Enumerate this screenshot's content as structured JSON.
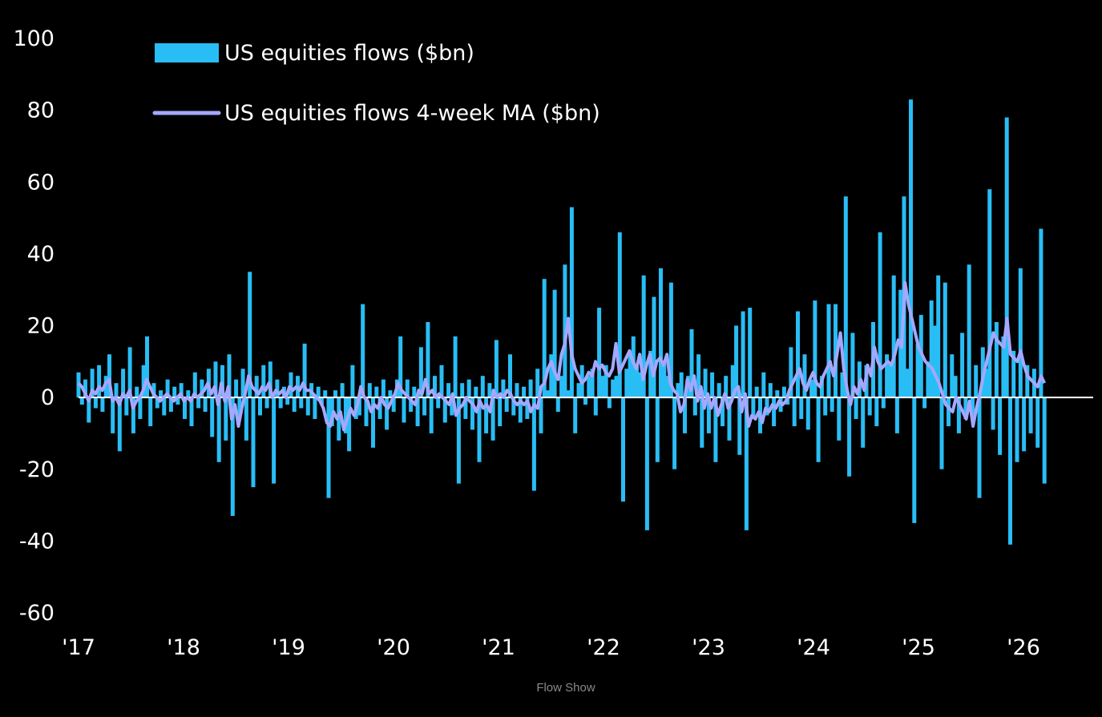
{
  "colors": {
    "background": "#000000",
    "bars": "#29BDF5",
    "ma_line": "#A4A8FF",
    "zero_line": "#FFFFFF",
    "text": "#FFFFFF",
    "caption": "#8A8A8A"
  },
  "caption": "Flow Show",
  "chart_data": {
    "type": "bar",
    "title": "",
    "xlabel": "",
    "ylabel": "",
    "ylim": [
      -60,
      100
    ],
    "yticks": [
      "100",
      "80",
      "60",
      "40",
      "20",
      "0",
      "-20",
      "-40",
      "-60"
    ],
    "xticks": [
      "'17",
      "'18",
      "'19",
      "'20",
      "'21",
      "'22",
      "'23",
      "'24",
      "'25",
      "'26"
    ],
    "x_range_years": [
      2017,
      2026.5
    ],
    "grid": false,
    "legend": "top-left",
    "series": [
      {
        "name": "US equities flows ($bn)",
        "kind": "bar",
        "x_start": 2017.0,
        "freq": "weekly",
        "values": [
          7,
          -2,
          5,
          -7,
          8,
          -3,
          9,
          -4,
          6,
          12,
          -10,
          4,
          -15,
          8,
          -5,
          14,
          -10,
          3,
          -6,
          9,
          17,
          -8,
          4,
          -3,
          2,
          -5,
          5,
          -4,
          3,
          -2,
          4,
          -6,
          2,
          -8,
          7,
          -3,
          5,
          -4,
          8,
          -11,
          10,
          -18,
          9,
          -12,
          12,
          -33,
          5,
          -6,
          8,
          -12,
          35,
          -25,
          6,
          -5,
          9,
          -3,
          10,
          -24,
          5,
          -3,
          3,
          -2,
          7,
          -4,
          6,
          -3,
          15,
          -5,
          4,
          -6,
          3,
          -2,
          2,
          -28,
          -8,
          2,
          -12,
          4,
          -10,
          -15,
          9,
          -6,
          -5,
          26,
          -8,
          4,
          -14,
          3,
          -6,
          5,
          -9,
          2,
          -4,
          5,
          17,
          -7,
          5,
          -4,
          3,
          -8,
          14,
          -5,
          21,
          -10,
          6,
          -3,
          9,
          -7,
          4,
          -5,
          17,
          -24,
          4,
          -6,
          5,
          -9,
          3,
          -18,
          6,
          -10,
          4,
          -12,
          16,
          -8,
          5,
          -4,
          12,
          -5,
          4,
          -7,
          3,
          -6,
          5,
          -26,
          8,
          -10,
          33,
          2,
          12,
          30,
          -4,
          6,
          37,
          2,
          53,
          -10,
          4,
          9,
          -2,
          6,
          8,
          -5,
          25,
          6,
          9,
          -3,
          5,
          6,
          46,
          -29,
          8,
          12,
          17,
          9,
          7,
          34,
          -37,
          13,
          28,
          -18,
          36,
          10,
          6,
          32,
          -20,
          4,
          7,
          -10,
          6,
          19,
          -5,
          12,
          -14,
          8,
          -10,
          7,
          -18,
          4,
          -8,
          6,
          -12,
          9,
          20,
          -16,
          24,
          -37,
          25,
          -6,
          3,
          -10,
          7,
          -5,
          4,
          -8,
          2,
          -4,
          3,
          -2,
          14,
          -8,
          24,
          -6,
          12,
          -9,
          5,
          27,
          -18,
          6,
          -5,
          26,
          -4,
          26,
          -12,
          7,
          56,
          -22,
          18,
          -6,
          10,
          -14,
          9,
          -5,
          21,
          -8,
          46,
          -3,
          12,
          9,
          34,
          -10,
          30,
          56,
          8,
          83,
          -35,
          15,
          23,
          -3,
          10,
          27,
          20,
          34,
          -20,
          32,
          -8,
          12,
          6,
          -10,
          18,
          -6,
          37,
          -5,
          9,
          -28,
          14,
          8,
          58,
          -9,
          21,
          -16,
          17,
          78,
          -41,
          13,
          -18,
          36,
          -15,
          9,
          -10,
          8,
          -14,
          47,
          -24
        ]
      },
      {
        "name": "US equities flows 4-week MA ($bn)",
        "kind": "line",
        "x_start": 2017.0,
        "freq": "weekly",
        "values": [
          4,
          3,
          1,
          -1,
          2,
          1,
          3,
          2,
          4,
          5,
          -1,
          0,
          -2,
          1,
          0,
          2,
          -3,
          -1,
          0,
          2,
          5,
          3,
          1,
          0,
          -1,
          0,
          1,
          0,
          -1,
          0,
          1,
          -1,
          0,
          -1,
          1,
          0,
          1,
          2,
          4,
          1,
          3,
          -2,
          4,
          -1,
          3,
          -6,
          -2,
          -8,
          -3,
          1,
          6,
          3,
          2,
          1,
          3,
          2,
          4,
          0,
          2,
          1,
          2,
          0,
          3,
          2,
          3,
          2,
          4,
          2,
          2,
          1,
          0,
          -1,
          -3,
          -7,
          -8,
          -4,
          -6,
          -4,
          -9,
          -6,
          -3,
          -5,
          -2,
          3,
          0,
          -1,
          -4,
          -2,
          -3,
          0,
          -2,
          -3,
          -1,
          1,
          4,
          2,
          1,
          0,
          -1,
          -2,
          2,
          1,
          5,
          1,
          2,
          0,
          1,
          0,
          -1,
          -2,
          1,
          -5,
          -3,
          -2,
          0,
          -1,
          -2,
          -4,
          -1,
          -3,
          -2,
          -4,
          2,
          0,
          1,
          0,
          2,
          1,
          -1,
          -2,
          -1,
          -2,
          -1,
          -4,
          -2,
          -3,
          3,
          4,
          8,
          10,
          7,
          5,
          12,
          15,
          22,
          12,
          8,
          6,
          4,
          5,
          7,
          6,
          10,
          8,
          9,
          7,
          6,
          8,
          15,
          7,
          9,
          11,
          13,
          10,
          8,
          12,
          5,
          9,
          12,
          6,
          10,
          11,
          9,
          12,
          4,
          2,
          1,
          -4,
          -2,
          5,
          2,
          6,
          -1,
          3,
          -3,
          1,
          -3,
          0,
          -5,
          -2,
          1,
          -3,
          -1,
          2,
          3,
          -4,
          1,
          -8,
          -5,
          -6,
          -4,
          -7,
          -3,
          -4,
          -2,
          -3,
          -1,
          -2,
          -1,
          2,
          4,
          6,
          8,
          4,
          2,
          5,
          7,
          4,
          3,
          6,
          8,
          10,
          6,
          12,
          18,
          8,
          2,
          -2,
          3,
          1,
          5,
          2,
          9,
          6,
          14,
          10,
          8,
          9,
          10,
          9,
          12,
          16,
          14,
          32,
          26,
          22,
          18,
          14,
          12,
          10,
          9,
          8,
          6,
          4,
          1,
          -2,
          -3,
          -4,
          0,
          -2,
          -4,
          -6,
          -1,
          -8,
          -3,
          1,
          6,
          10,
          14,
          18,
          16,
          15,
          14,
          22,
          12,
          11,
          10,
          13,
          9,
          6,
          5,
          4,
          3,
          6,
          4
        ]
      }
    ]
  }
}
